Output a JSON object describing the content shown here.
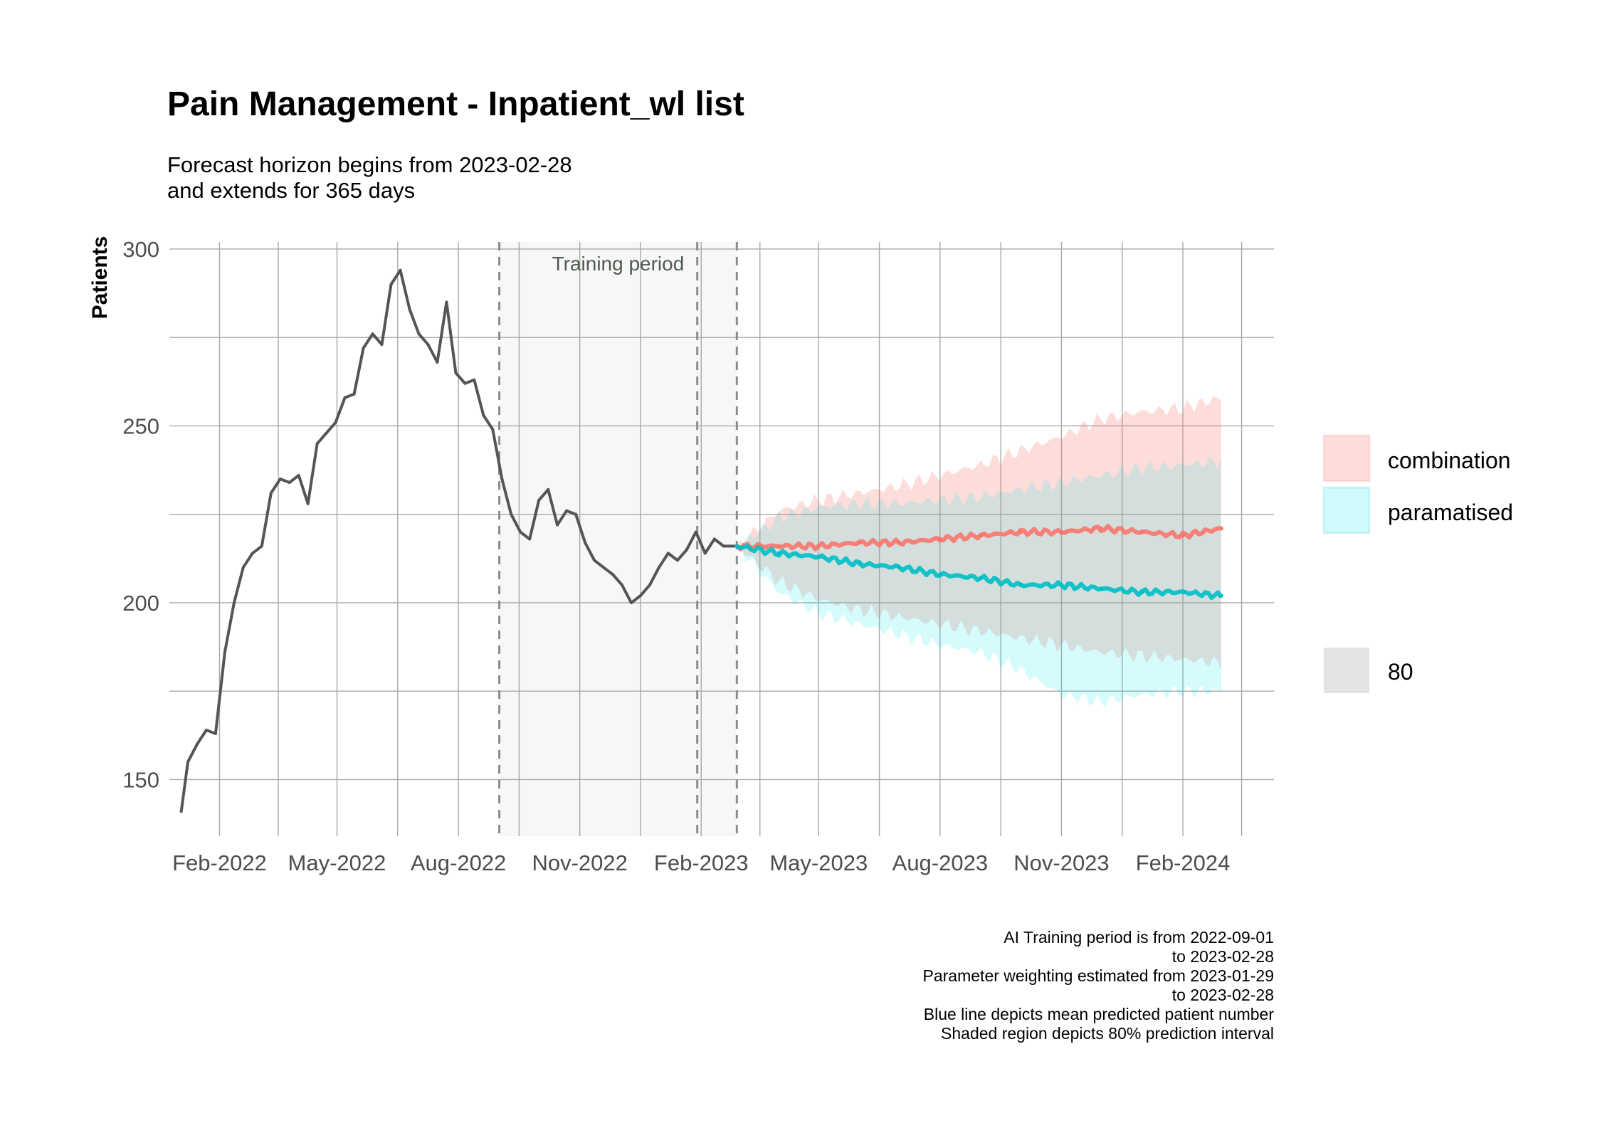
{
  "chart_data": {
    "type": "line",
    "title": "Pain Management - Inpatient_wl list",
    "subtitle_lines": [
      "Forecast horizon begins from 2023-02-28",
      "and extends for 365 days"
    ],
    "ylabel": "Patients",
    "xlabel": "",
    "ylim": [
      134,
      302
    ],
    "xlim": [
      "2021-12-25",
      "2024-04-10"
    ],
    "y_ticks": [
      150,
      200,
      250,
      300
    ],
    "x_ticks": [
      "2022-02-01",
      "2022-05-01",
      "2022-08-01",
      "2022-11-01",
      "2023-02-01",
      "2023-05-01",
      "2023-08-01",
      "2023-11-01",
      "2024-02-01"
    ],
    "x_tick_labels": [
      "Feb-2022",
      "May-2022",
      "Aug-2022",
      "Nov-2022",
      "Feb-2023",
      "May-2023",
      "Aug-2023",
      "Nov-2023",
      "Feb-2024"
    ],
    "grid": true,
    "training_period": {
      "start": "2022-09-01",
      "end": "2023-02-28",
      "label": "Training period"
    },
    "vlines_dashed": [
      "2022-09-01",
      "2023-01-29",
      "2023-02-28"
    ],
    "observed": {
      "color": "#555555",
      "x": [
        "2022-01-03",
        "2022-01-08",
        "2022-01-15",
        "2022-01-22",
        "2022-01-29",
        "2022-02-05",
        "2022-02-12",
        "2022-02-19",
        "2022-02-26",
        "2022-03-05",
        "2022-03-12",
        "2022-03-19",
        "2022-03-26",
        "2022-04-02",
        "2022-04-09",
        "2022-04-16",
        "2022-04-23",
        "2022-04-30",
        "2022-05-07",
        "2022-05-14",
        "2022-05-21",
        "2022-05-28",
        "2022-06-04",
        "2022-06-11",
        "2022-06-18",
        "2022-06-25",
        "2022-07-02",
        "2022-07-09",
        "2022-07-16",
        "2022-07-23",
        "2022-07-30",
        "2022-08-06",
        "2022-08-13",
        "2022-08-20",
        "2022-08-27",
        "2022-09-03",
        "2022-09-10",
        "2022-09-17",
        "2022-09-24",
        "2022-10-01",
        "2022-10-08",
        "2022-10-15",
        "2022-10-22",
        "2022-10-29",
        "2022-11-05",
        "2022-11-12",
        "2022-11-19",
        "2022-11-26",
        "2022-12-03",
        "2022-12-10",
        "2022-12-17",
        "2022-12-24",
        "2022-12-31",
        "2023-01-07",
        "2023-01-14",
        "2023-01-21",
        "2023-01-28",
        "2023-02-04",
        "2023-02-11",
        "2023-02-18",
        "2023-02-28"
      ],
      "y": [
        141,
        155,
        160,
        164,
        163,
        186,
        200,
        210,
        214,
        216,
        231,
        235,
        234,
        236,
        228,
        245,
        248,
        251,
        258,
        259,
        272,
        276,
        273,
        290,
        294,
        283,
        276,
        273,
        268,
        285,
        265,
        262,
        263,
        253,
        249,
        235,
        225,
        220,
        218,
        229,
        232,
        222,
        226,
        225,
        217,
        212,
        210,
        208,
        205,
        200,
        202,
        205,
        210,
        214,
        212,
        215,
        220,
        214,
        218,
        216,
        216
      ]
    },
    "forecast": [
      {
        "name": "combination",
        "color": "#F8766D",
        "x": [
          "2023-02-28",
          "2023-04-01",
          "2023-05-01",
          "2023-06-01",
          "2023-07-01",
          "2023-08-01",
          "2023-09-01",
          "2023-10-01",
          "2023-11-01",
          "2023-12-01",
          "2024-01-01",
          "2024-02-01",
          "2024-03-01"
        ],
        "y": [
          216,
          216,
          216,
          217,
          217,
          218,
          219,
          220,
          220,
          221,
          220,
          219,
          221
        ],
        "lower": [
          216,
          206,
          201,
          198,
          196,
          194,
          192,
          190,
          188,
          186,
          185,
          184,
          183
        ],
        "upper": [
          216,
          226,
          229,
          231,
          233,
          236,
          239,
          243,
          247,
          252,
          254,
          255,
          258
        ]
      },
      {
        "name": "paramatised",
        "color": "#00BFC4",
        "x": [
          "2023-02-28",
          "2023-04-01",
          "2023-05-01",
          "2023-06-01",
          "2023-07-01",
          "2023-08-01",
          "2023-09-01",
          "2023-10-01",
          "2023-11-01",
          "2023-12-01",
          "2024-01-01",
          "2024-02-01",
          "2024-03-01"
        ],
        "y": [
          216,
          214,
          213,
          211,
          210,
          208,
          207,
          205,
          205,
          204,
          203,
          203,
          202
        ],
        "lower": [
          216,
          203,
          197,
          194,
          191,
          188,
          186,
          181,
          174,
          172,
          174,
          175,
          175
        ],
        "upper": [
          216,
          224,
          227,
          228,
          228,
          229,
          230,
          232,
          234,
          236,
          238,
          239,
          240
        ]
      }
    ],
    "legend": {
      "placement": "right",
      "items": [
        {
          "label": "combination",
          "color": "#F8766D"
        },
        {
          "label": "paramatised",
          "color": "#00BFC4"
        }
      ],
      "interval_label": "80",
      "interval_color": "#e3e3e3"
    },
    "caption_lines": [
      "AI Training period is from 2022-09-01",
      "to 2023-02-28",
      "Parameter weighting estimated from 2023-01-29",
      "to 2023-02-28",
      "Blue line depicts mean predicted patient number",
      "Shaded region depicts 80% prediction interval"
    ]
  }
}
